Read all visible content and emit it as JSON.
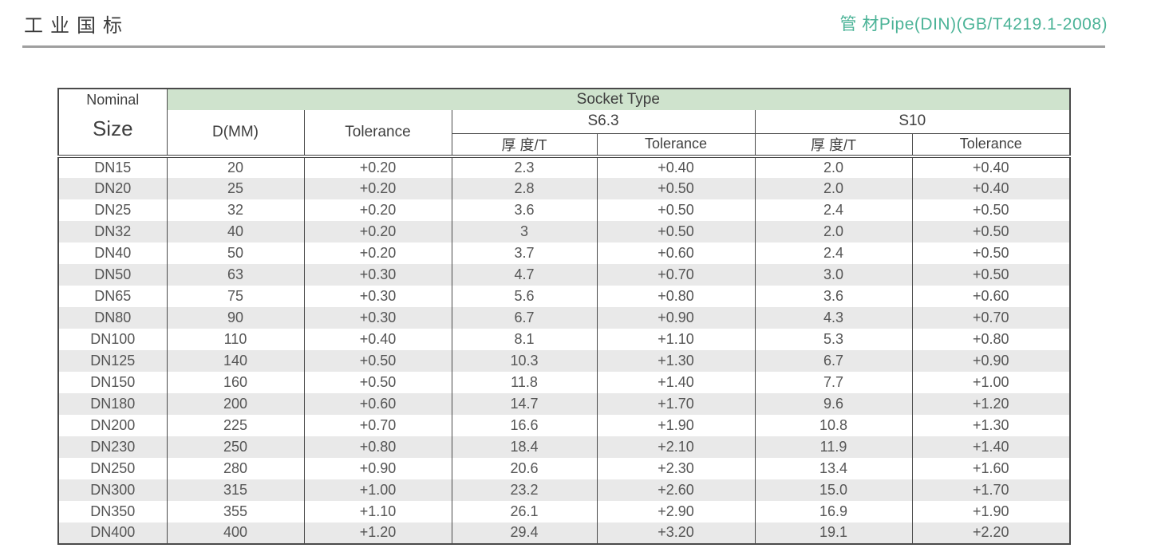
{
  "page": {
    "title": "工业国标",
    "standard_title": "管 材Pipe(DIN)(GB/T4219.1-2008)"
  },
  "colors": {
    "accent_green": "#4bb397",
    "band_green": "#cfe3cd",
    "stripe_gray": "#e9e9e9",
    "border_dark": "#4a4a4a",
    "text_gray": "#555555"
  },
  "table": {
    "header": {
      "nominal": "Nominal",
      "size": "Size",
      "socket_type": "Socket Type",
      "d_mm": "D(MM)",
      "tolerance": "Tolerance",
      "s6_3": "S6.3",
      "s10": "S10",
      "s6_3_thickness": "厚 度/T",
      "s6_3_tolerance": "Tolerance",
      "s10_thickness": "厚 度/T",
      "s10_tolerance": "Tolerance"
    },
    "rows": [
      [
        "DN15",
        "20",
        "+0.20",
        "2.3",
        "+0.40",
        "2.0",
        "+0.40"
      ],
      [
        "DN20",
        "25",
        "+0.20",
        "2.8",
        "+0.50",
        "2.0",
        "+0.40"
      ],
      [
        "DN25",
        "32",
        "+0.20",
        "3.6",
        "+0.50",
        "2.4",
        "+0.50"
      ],
      [
        "DN32",
        "40",
        "+0.20",
        "3",
        "+0.50",
        "2.0",
        "+0.50"
      ],
      [
        "DN40",
        "50",
        "+0.20",
        "3.7",
        "+0.60",
        "2.4",
        "+0.50"
      ],
      [
        "DN50",
        "63",
        "+0.30",
        "4.7",
        "+0.70",
        "3.0",
        "+0.50"
      ],
      [
        "DN65",
        "75",
        "+0.30",
        "5.6",
        "+0.80",
        "3.6",
        "+0.60"
      ],
      [
        "DN80",
        "90",
        "+0.30",
        "6.7",
        "+0.90",
        "4.3",
        "+0.70"
      ],
      [
        "DN100",
        "110",
        "+0.40",
        "8.1",
        "+1.10",
        "5.3",
        "+0.80"
      ],
      [
        "DN125",
        "140",
        "+0.50",
        "10.3",
        "+1.30",
        "6.7",
        "+0.90"
      ],
      [
        "DN150",
        "160",
        "+0.50",
        "11.8",
        "+1.40",
        "7.7",
        "+1.00"
      ],
      [
        "DN180",
        "200",
        "+0.60",
        "14.7",
        "+1.70",
        "9.6",
        "+1.20"
      ],
      [
        "DN200",
        "225",
        "+0.70",
        "16.6",
        "+1.90",
        "10.8",
        "+1.30"
      ],
      [
        "DN230",
        "250",
        "+0.80",
        "18.4",
        "+2.10",
        "11.9",
        "+1.40"
      ],
      [
        "DN250",
        "280",
        "+0.90",
        "20.6",
        "+2.30",
        "13.4",
        "+1.60"
      ],
      [
        "DN300",
        "315",
        "+1.00",
        "23.2",
        "+2.60",
        "15.0",
        "+1.70"
      ],
      [
        "DN350",
        "355",
        "+1.10",
        "26.1",
        "+2.90",
        "16.9",
        "+1.90"
      ],
      [
        "DN400",
        "400",
        "+1.20",
        "29.4",
        "+3.20",
        "19.1",
        "+2.20"
      ]
    ]
  }
}
